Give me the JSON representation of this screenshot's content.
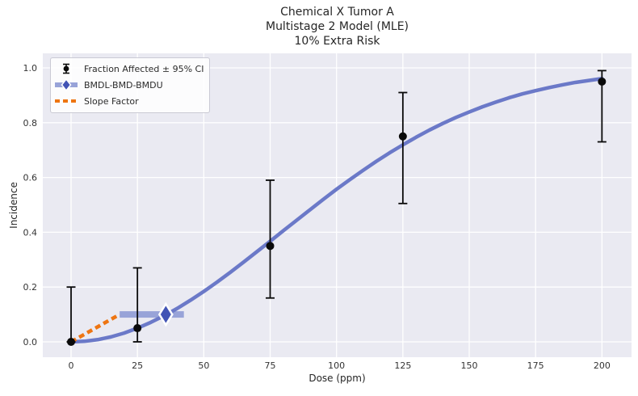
{
  "title": {
    "line1": "Chemical X Tumor A",
    "line2": "Multistage 2 Model (MLE)",
    "line3": "10% Extra Risk"
  },
  "chart_data": {
    "type": "line+scatter-errorbar",
    "title": "Chemical X Tumor A / Multistage 2 Model (MLE) / 10% Extra Risk",
    "xlabel": "Dose (ppm)",
    "ylabel": "Incidence",
    "grid": true,
    "legend_position": "upper left",
    "x_axis": {
      "range": [
        -10.65,
        211.15
      ],
      "tick_values": [
        0,
        25,
        50,
        75,
        100,
        125,
        150,
        175,
        200
      ],
      "tick_labels": [
        "0",
        "25",
        "50",
        "75",
        "100",
        "125",
        "150",
        "175",
        "200"
      ]
    },
    "y_axis": {
      "range": [
        -0.0561,
        1.0531
      ],
      "tick_values": [
        0.0,
        0.2,
        0.4,
        0.6,
        0.8,
        1.0
      ],
      "tick_labels": [
        "0.0",
        "0.2",
        "0.4",
        "0.6",
        "0.8",
        "1.0"
      ]
    },
    "legend": {
      "entries": [
        "Fraction Affected ± 95% CI",
        "BMDL-BMD-BMDU",
        "Slope Factor"
      ]
    },
    "observed": {
      "name": "Fraction Affected ± 95% CI",
      "doses": [
        0,
        25,
        75,
        125,
        200
      ],
      "incidence": [
        0.0,
        0.05,
        0.35,
        0.75,
        0.95
      ],
      "ci_lower": [
        0.0,
        0.0,
        0.16,
        0.505,
        0.73
      ],
      "ci_upper": [
        0.2,
        0.27,
        0.59,
        0.91,
        0.99
      ]
    },
    "model_curve": {
      "name": "Multistage 2 Model (MLE)",
      "x": [
        0,
        5,
        10,
        15,
        20,
        25,
        30,
        35,
        40,
        45,
        50,
        55,
        60,
        65,
        70,
        75,
        80,
        85,
        90,
        95,
        100,
        105,
        110,
        115,
        120,
        125,
        130,
        135,
        140,
        145,
        150,
        155,
        160,
        165,
        170,
        175,
        180,
        185,
        190,
        195,
        200
      ],
      "y": [
        0.0,
        0.002,
        0.008,
        0.018,
        0.032,
        0.05,
        0.071,
        0.095,
        0.122,
        0.152,
        0.184,
        0.218,
        0.254,
        0.291,
        0.329,
        0.367,
        0.406,
        0.444,
        0.482,
        0.52,
        0.557,
        0.592,
        0.626,
        0.659,
        0.69,
        0.719,
        0.747,
        0.773,
        0.797,
        0.819,
        0.839,
        0.858,
        0.875,
        0.891,
        0.905,
        0.917,
        0.928,
        0.938,
        0.947,
        0.954,
        0.961
      ]
    },
    "bmd_analysis": {
      "bmr": 0.1,
      "bmdl": 18.3,
      "bmd": 35.7,
      "bmdu": 42.5
    },
    "slope_factor_line": {
      "x": [
        0,
        18.3
      ],
      "y": [
        0.0,
        0.1
      ]
    }
  },
  "colors": {
    "figure_bg": "#ffffff",
    "plot_bg": "#eaeaf2",
    "grid": "#ffffff",
    "curve": "#6b79c8",
    "bmd_band": "#98a3d8",
    "bmd_diamond": "#4254b5",
    "diamond_edge": "#ffffff",
    "slope_factor": "#ee7512",
    "observed": "#0a0a0a",
    "text": "#262626",
    "tick_text": "#333333",
    "legend_border": "#cacad4"
  }
}
